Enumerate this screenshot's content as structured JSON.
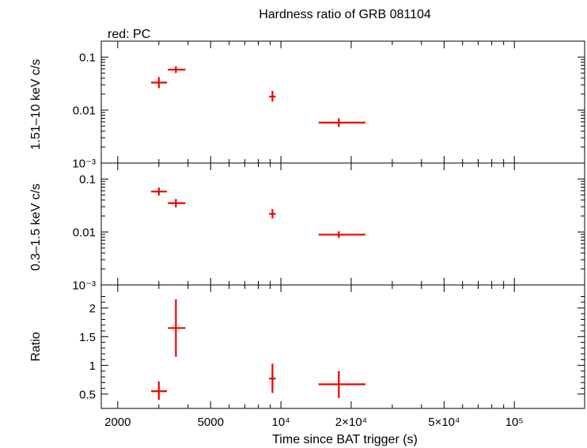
{
  "title": "Hardness ratio of GRB 081104",
  "legend_text": "red: PC",
  "colors": {
    "data": "#ee0000",
    "axes": "#000000",
    "background": "#ffffff"
  },
  "chart_data": [
    {
      "type": "scatter",
      "panel": "hard",
      "ylabel": "1.51–10 keV c/s",
      "yscale": "log",
      "ylim": [
        0.001,
        0.2
      ],
      "yticks": [
        {
          "v": 0.1,
          "label": "0.1"
        },
        {
          "v": 0.01,
          "label": "0.01"
        },
        {
          "v": 0.001,
          "label": "10⁻³"
        }
      ],
      "series": [
        {
          "color": "#ee0000",
          "points": [
            {
              "x": 3000,
              "xlo": 2780,
              "xhi": 3250,
              "y": 0.033,
              "ylo": 0.026,
              "yhi": 0.042
            },
            {
              "x": 3550,
              "xlo": 3280,
              "xhi": 3900,
              "y": 0.058,
              "ylo": 0.05,
              "yhi": 0.067
            },
            {
              "x": 9200,
              "xlo": 8900,
              "xhi": 9500,
              "y": 0.018,
              "ylo": 0.0145,
              "yhi": 0.023
            },
            {
              "x": 17700,
              "xlo": 14500,
              "xhi": 23000,
              "y": 0.0058,
              "ylo": 0.0048,
              "yhi": 0.007
            }
          ]
        }
      ]
    },
    {
      "type": "scatter",
      "panel": "soft",
      "ylabel": "0.3–1.5 keV c/s",
      "yscale": "log",
      "ylim": [
        0.001,
        0.2
      ],
      "yticks": [
        {
          "v": 0.1,
          "label": "0.1"
        },
        {
          "v": 0.01,
          "label": "0.01"
        },
        {
          "v": 0.001,
          "label": "10⁻³"
        }
      ],
      "series": [
        {
          "color": "#ee0000",
          "points": [
            {
              "x": 3000,
              "xlo": 2780,
              "xhi": 3250,
              "y": 0.058,
              "ylo": 0.049,
              "yhi": 0.069
            },
            {
              "x": 3550,
              "xlo": 3280,
              "xhi": 3900,
              "y": 0.035,
              "ylo": 0.029,
              "yhi": 0.042
            },
            {
              "x": 9200,
              "xlo": 8900,
              "xhi": 9500,
              "y": 0.022,
              "ylo": 0.018,
              "yhi": 0.027
            },
            {
              "x": 17700,
              "xlo": 14500,
              "xhi": 23000,
              "y": 0.0089,
              "ylo": 0.0077,
              "yhi": 0.0103
            }
          ]
        }
      ]
    },
    {
      "type": "scatter",
      "panel": "ratio",
      "ylabel": "Ratio",
      "yscale": "linear",
      "ylim": [
        0.25,
        2.4
      ],
      "yticks": [
        {
          "v": 0.5,
          "label": "0.5"
        },
        {
          "v": 1,
          "label": "1"
        },
        {
          "v": 1.5,
          "label": "1.5"
        },
        {
          "v": 2,
          "label": "2"
        }
      ],
      "series": [
        {
          "color": "#ee0000",
          "points": [
            {
              "x": 3000,
              "xlo": 2780,
              "xhi": 3250,
              "y": 0.55,
              "ylo": 0.4,
              "yhi": 0.72
            },
            {
              "x": 3550,
              "xlo": 3280,
              "xhi": 3900,
              "y": 1.65,
              "ylo": 1.15,
              "yhi": 2.15
            },
            {
              "x": 9200,
              "xlo": 8900,
              "xhi": 9500,
              "y": 0.77,
              "ylo": 0.52,
              "yhi": 1.03
            },
            {
              "x": 17700,
              "xlo": 14500,
              "xhi": 23000,
              "y": 0.67,
              "ylo": 0.43,
              "yhi": 0.9
            }
          ]
        }
      ]
    }
  ],
  "x_axis": {
    "label": "Time since BAT trigger (s)",
    "scale": "log",
    "xlim": [
      1700,
      200000
    ],
    "ticks": [
      {
        "v": 2000,
        "label": "2000"
      },
      {
        "v": 5000,
        "label": "5000"
      },
      {
        "v": 10000,
        "label": "10⁴"
      },
      {
        "v": 20000,
        "label": "2×10⁴"
      },
      {
        "v": 50000,
        "label": "5×10⁴"
      },
      {
        "v": 100000,
        "label": "10⁵"
      }
    ]
  }
}
